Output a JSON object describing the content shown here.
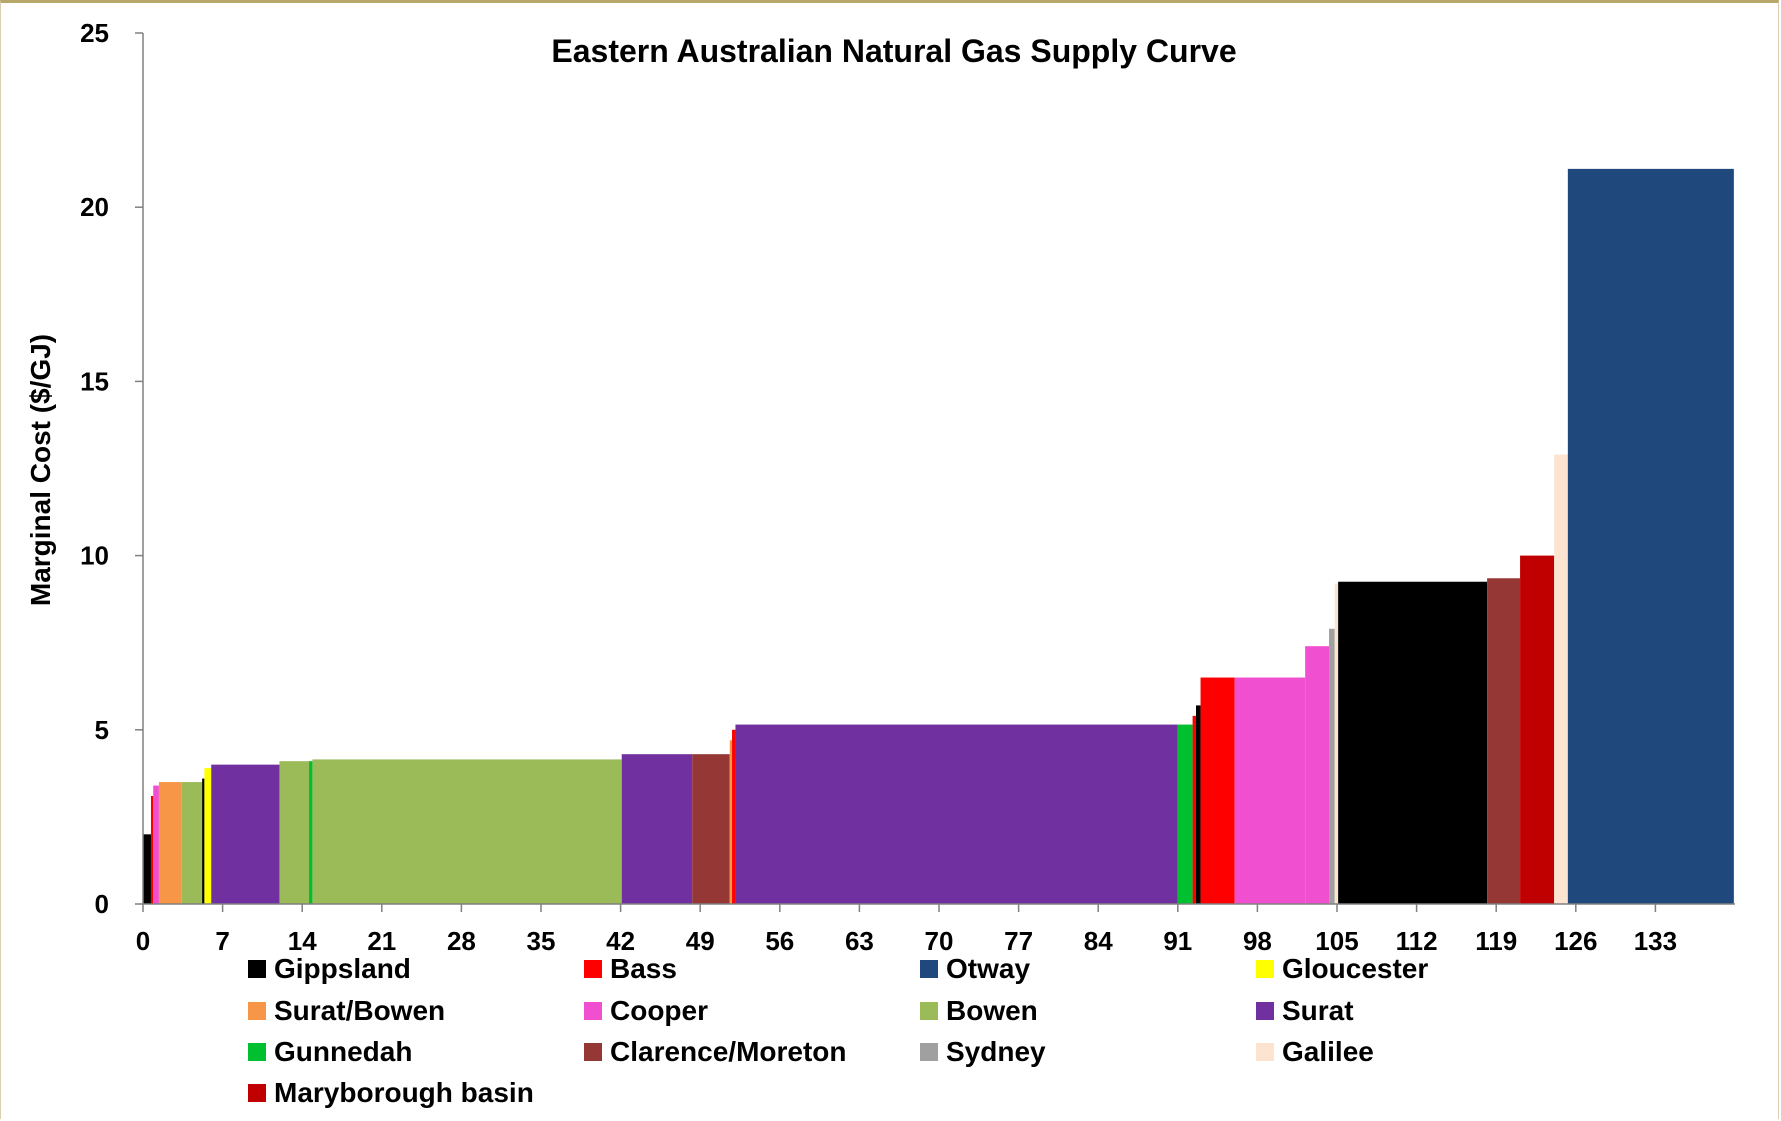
{
  "chart_data": {
    "type": "bar",
    "subtype": "variable-width step supply curve",
    "title": "Eastern Australian Natural Gas Supply Curve",
    "xlabel": "",
    "ylabel": "Marginal Cost ($/GJ)",
    "xlim": [
      0,
      140
    ],
    "ylim": [
      0,
      25
    ],
    "x_ticks": [
      0,
      7,
      14,
      21,
      28,
      35,
      42,
      49,
      56,
      63,
      70,
      77,
      84,
      91,
      98,
      105,
      112,
      119,
      126,
      133
    ],
    "y_ticks": [
      0,
      5,
      10,
      15,
      20,
      25
    ],
    "grid": false,
    "legend_position": "bottom",
    "legend": [
      {
        "name": "Gippsland",
        "color": "#000000"
      },
      {
        "name": "Bass",
        "color": "#ff0000"
      },
      {
        "name": "Otway",
        "color": "#1f497d"
      },
      {
        "name": "Gloucester",
        "color": "#ffff00"
      },
      {
        "name": "Surat/Bowen",
        "color": "#f79646"
      },
      {
        "name": "Cooper",
        "color": "#f050d0"
      },
      {
        "name": "Bowen",
        "color": "#9bbb59"
      },
      {
        "name": "Surat",
        "color": "#7030a0"
      },
      {
        "name": "Gunnedah",
        "color": "#00c030"
      },
      {
        "name": "Clarence/Moreton",
        "color": "#953735"
      },
      {
        "name": "Sydney",
        "color": "#a0a0a0"
      },
      {
        "name": "Galilee",
        "color": "#fde4d0"
      },
      {
        "name": "Maryborough basin",
        "color": "#c00000"
      }
    ],
    "segments": [
      {
        "basin": "Gippsland",
        "x0": 0.0,
        "x1": 0.7,
        "y": 2.0
      },
      {
        "basin": "Bass",
        "x0": 0.7,
        "x1": 0.9,
        "y": 3.1
      },
      {
        "basin": "Cooper",
        "x0": 0.9,
        "x1": 1.4,
        "y": 3.4
      },
      {
        "basin": "Surat/Bowen",
        "x0": 1.4,
        "x1": 3.4,
        "y": 3.5
      },
      {
        "basin": "Bowen",
        "x0": 3.4,
        "x1": 5.2,
        "y": 3.5
      },
      {
        "basin": "Gippsland",
        "x0": 5.2,
        "x1": 5.4,
        "y": 3.6
      },
      {
        "basin": "Gloucester",
        "x0": 5.4,
        "x1": 6.0,
        "y": 3.9
      },
      {
        "basin": "Surat",
        "x0": 6.0,
        "x1": 12.0,
        "y": 4.0
      },
      {
        "basin": "Bowen",
        "x0": 12.0,
        "x1": 14.6,
        "y": 4.1
      },
      {
        "basin": "Gunnedah",
        "x0": 14.6,
        "x1": 14.9,
        "y": 4.1
      },
      {
        "basin": "Bowen",
        "x0": 14.9,
        "x1": 42.1,
        "y": 4.15
      },
      {
        "basin": "Surat",
        "x0": 42.1,
        "x1": 48.3,
        "y": 4.3
      },
      {
        "basin": "Clarence/Moreton",
        "x0": 48.3,
        "x1": 51.6,
        "y": 4.3
      },
      {
        "basin": "Surat/Bowen",
        "x0": 51.6,
        "x1": 51.8,
        "y": 4.7
      },
      {
        "basin": "Bass",
        "x0": 51.8,
        "x1": 52.1,
        "y": 5.0
      },
      {
        "basin": "Surat",
        "x0": 52.1,
        "x1": 91.0,
        "y": 5.15
      },
      {
        "basin": "Gunnedah",
        "x0": 91.0,
        "x1": 92.3,
        "y": 5.15
      },
      {
        "basin": "Bass",
        "x0": 92.3,
        "x1": 92.6,
        "y": 5.4
      },
      {
        "basin": "Gippsland",
        "x0": 92.6,
        "x1": 93.0,
        "y": 5.7
      },
      {
        "basin": "Bass",
        "x0": 93.0,
        "x1": 96.0,
        "y": 6.5
      },
      {
        "basin": "Cooper",
        "x0": 96.0,
        "x1": 102.2,
        "y": 6.5
      },
      {
        "basin": "Cooper",
        "x0": 102.2,
        "x1": 104.3,
        "y": 7.4
      },
      {
        "basin": "Sydney",
        "x0": 104.3,
        "x1": 104.8,
        "y": 7.9
      },
      {
        "basin": "Galilee",
        "x0": 104.8,
        "x1": 105.1,
        "y": 9.2
      },
      {
        "basin": "Gippsland",
        "x0": 105.1,
        "x1": 118.2,
        "y": 9.25
      },
      {
        "basin": "Clarence/Moreton",
        "x0": 118.2,
        "x1": 121.1,
        "y": 9.35
      },
      {
        "basin": "Maryborough basin",
        "x0": 121.1,
        "x1": 124.1,
        "y": 10.0
      },
      {
        "basin": "Galilee",
        "x0": 124.1,
        "x1": 125.3,
        "y": 12.9
      },
      {
        "basin": "Otway",
        "x0": 125.3,
        "x1": 139.9,
        "y": 21.1
      }
    ]
  }
}
